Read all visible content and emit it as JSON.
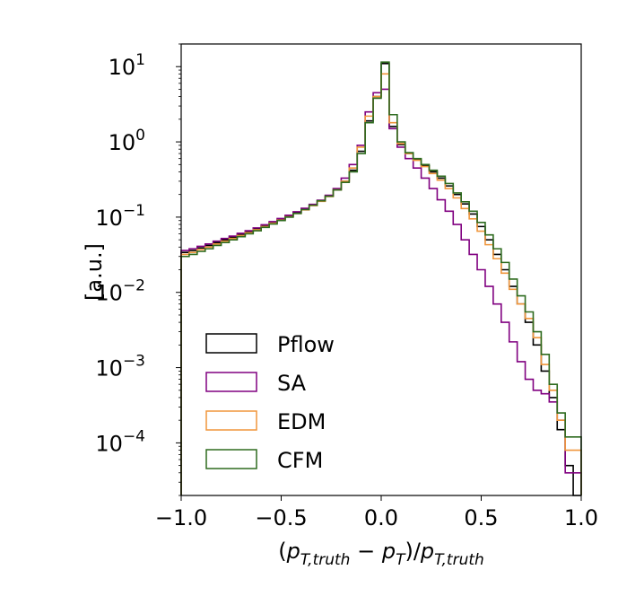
{
  "chart_data": {
    "type": "step-histogram",
    "xlabel": "(p_{T,truth} − p_T)/p_{T,truth}",
    "ylabel": "[a.u.]",
    "xlim": [
      -1.0,
      1.0
    ],
    "ylim": [
      2e-05,
      20
    ],
    "yscale": "log",
    "grid": false,
    "legend_position": "lower-left",
    "bin_edges": [
      -1.0,
      -0.96,
      -0.92,
      -0.88,
      -0.84,
      -0.8,
      -0.76,
      -0.72,
      -0.68,
      -0.64,
      -0.6,
      -0.56,
      -0.52,
      -0.48,
      -0.44,
      -0.4,
      -0.36,
      -0.32,
      -0.28,
      -0.24,
      -0.2,
      -0.16,
      -0.12,
      -0.08,
      -0.04,
      0.0,
      0.04,
      0.08,
      0.12,
      0.16,
      0.2,
      0.24,
      0.28,
      0.32,
      0.36,
      0.4,
      0.44,
      0.48,
      0.52,
      0.56,
      0.6,
      0.64,
      0.68,
      0.72,
      0.76,
      0.8,
      0.84,
      0.88,
      0.92,
      0.96,
      1.0
    ],
    "x_ticks": [
      "−1.0",
      "−0.5",
      "0.0",
      "0.5",
      "1.0"
    ],
    "x_tick_values": [
      -1.0,
      -0.5,
      0.0,
      0.5,
      1.0
    ],
    "y_ticks": [
      {
        "value": 10,
        "base": "10",
        "exp": "1"
      },
      {
        "value": 1,
        "base": "10",
        "exp": "0"
      },
      {
        "value": 0.1,
        "base": "10",
        "exp": "−1"
      },
      {
        "value": 0.01,
        "base": "10",
        "exp": "−2"
      },
      {
        "value": 0.001,
        "base": "10",
        "exp": "−3"
      },
      {
        "value": 0.0001,
        "base": "10",
        "exp": "−4"
      }
    ],
    "series": [
      {
        "name": "Pflow",
        "color": "#000000",
        "values": [
          0.034,
          0.036,
          0.039,
          0.042,
          0.046,
          0.05,
          0.054,
          0.059,
          0.064,
          0.07,
          0.077,
          0.085,
          0.093,
          0.103,
          0.115,
          0.128,
          0.145,
          0.165,
          0.19,
          0.23,
          0.3,
          0.42,
          0.75,
          1.9,
          4.0,
          11.0,
          1.6,
          0.92,
          0.7,
          0.58,
          0.48,
          0.4,
          0.33,
          0.26,
          0.2,
          0.15,
          0.11,
          0.075,
          0.05,
          0.032,
          0.02,
          0.012,
          0.007,
          0.004,
          0.002,
          0.0009,
          0.0004,
          0.00015,
          5e-05,
          0.0
        ]
      },
      {
        "name": "SA",
        "color": "#800080",
        "values": [
          0.036,
          0.038,
          0.041,
          0.044,
          0.048,
          0.052,
          0.056,
          0.061,
          0.066,
          0.072,
          0.079,
          0.087,
          0.096,
          0.106,
          0.118,
          0.131,
          0.148,
          0.168,
          0.195,
          0.24,
          0.33,
          0.5,
          0.9,
          2.5,
          4.5,
          5.0,
          1.5,
          0.85,
          0.6,
          0.45,
          0.33,
          0.24,
          0.17,
          0.12,
          0.08,
          0.05,
          0.032,
          0.02,
          0.012,
          0.007,
          0.004,
          0.0022,
          0.0012,
          0.0007,
          0.0005,
          0.00045,
          0.00035,
          0.0002,
          4e-05,
          4e-05
        ]
      },
      {
        "name": "EDM",
        "color": "#f0963c",
        "values": [
          0.032,
          0.034,
          0.037,
          0.04,
          0.044,
          0.048,
          0.052,
          0.057,
          0.062,
          0.068,
          0.075,
          0.083,
          0.091,
          0.101,
          0.112,
          0.125,
          0.142,
          0.162,
          0.188,
          0.23,
          0.3,
          0.45,
          0.85,
          2.2,
          4.0,
          8.0,
          1.8,
          0.95,
          0.7,
          0.57,
          0.47,
          0.38,
          0.31,
          0.24,
          0.18,
          0.13,
          0.095,
          0.065,
          0.043,
          0.028,
          0.018,
          0.011,
          0.007,
          0.0045,
          0.0025,
          0.0011,
          0.0005,
          0.0002,
          8e-05,
          8e-05
        ]
      },
      {
        "name": "CFM",
        "color": "#2e6b1f",
        "values": [
          0.03,
          0.032,
          0.035,
          0.038,
          0.042,
          0.046,
          0.05,
          0.055,
          0.06,
          0.066,
          0.073,
          0.081,
          0.09,
          0.1,
          0.112,
          0.126,
          0.144,
          0.165,
          0.19,
          0.23,
          0.29,
          0.4,
          0.7,
          1.8,
          3.8,
          11.5,
          2.3,
          1.0,
          0.72,
          0.6,
          0.5,
          0.42,
          0.35,
          0.28,
          0.21,
          0.16,
          0.12,
          0.085,
          0.058,
          0.038,
          0.025,
          0.015,
          0.009,
          0.0055,
          0.003,
          0.0015,
          0.0006,
          0.00025,
          0.00012,
          0.00012
        ]
      }
    ]
  }
}
